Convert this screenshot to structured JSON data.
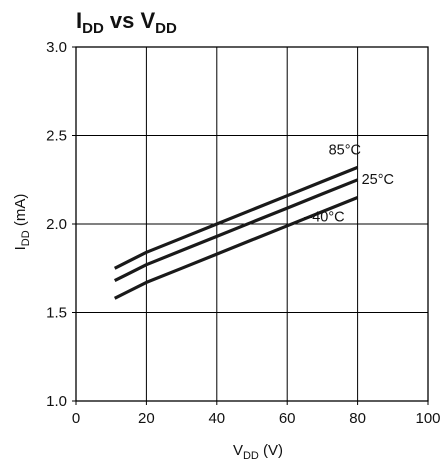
{
  "chart_data": {
    "type": "line",
    "title": {
      "main_1": "I",
      "sub_1": "DD",
      "main_2": " vs V",
      "sub_2": "DD"
    },
    "xlabel": {
      "main": "V",
      "sub": "DD",
      "unit": " (V)"
    },
    "ylabel": {
      "main": "I",
      "sub": "DD",
      "unit": " (mA)"
    },
    "xlim": [
      0,
      100
    ],
    "ylim": [
      1.0,
      3.0
    ],
    "x_ticks": [
      0,
      20,
      40,
      60,
      80,
      100
    ],
    "x_tick_labels": [
      "0",
      "20",
      "40",
      "60",
      "80",
      "100"
    ],
    "y_ticks": [
      1.0,
      1.5,
      2.0,
      2.5,
      3.0
    ],
    "y_tick_labels": [
      "1.0",
      "1.5",
      "2.0",
      "2.5",
      "3.0"
    ],
    "grid": true,
    "series": [
      {
        "name": "85°C",
        "x": [
          11,
          20,
          30,
          40,
          50,
          60,
          70,
          80
        ],
        "y": [
          1.75,
          1.84,
          1.92,
          2.0,
          2.08,
          2.16,
          2.24,
          2.32
        ]
      },
      {
        "name": "25°C",
        "x": [
          11,
          20,
          30,
          40,
          50,
          60,
          70,
          80
        ],
        "y": [
          1.68,
          1.77,
          1.85,
          1.93,
          2.01,
          2.09,
          2.17,
          2.25
        ]
      },
      {
        "name": "–40°C",
        "x": [
          11,
          20,
          30,
          40,
          50,
          60,
          70,
          80
        ],
        "y": [
          1.58,
          1.67,
          1.75,
          1.83,
          1.91,
          1.99,
          2.07,
          2.15
        ]
      }
    ],
    "colors": {
      "line": "#1a1a1a",
      "grid": "#000000",
      "axis": "#000000"
    }
  }
}
